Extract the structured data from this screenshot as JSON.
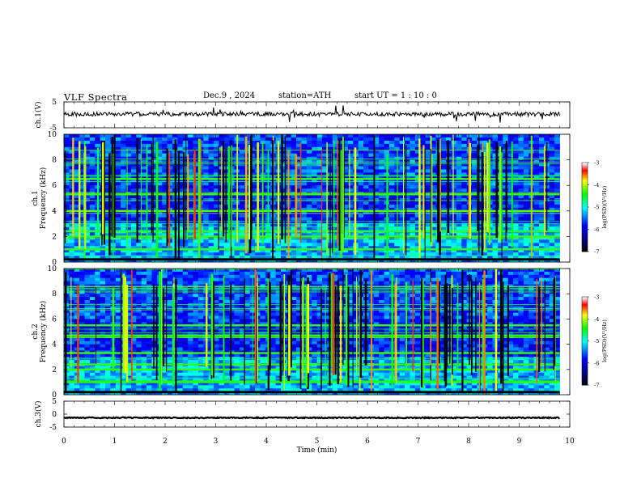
{
  "header": {
    "title": "VLF  Spectra",
    "date": "Dec.9  , 2024",
    "station": "station=ATH",
    "start_ut": "start  UT  =   1 : 10 : 0"
  },
  "chart_data": {
    "type": "heatmap",
    "x_axis": {
      "label": "Time  (min)",
      "range": [
        0,
        10
      ],
      "ticks": [
        0,
        1,
        2,
        3,
        4,
        5,
        6,
        7,
        8,
        9,
        10
      ]
    },
    "panels": [
      {
        "name": "ch.1 waveform",
        "type": "line",
        "ylabel": "ch.1(V)",
        "ylim": [
          -5,
          5
        ],
        "yticks": [
          "5",
          "-5"
        ],
        "baseline": 0.3,
        "data_extent_min": 9.8
      },
      {
        "name": "ch.1 spectrogram",
        "type": "heatmap",
        "ylabel": "ch.1\nFrequency  (kHz)",
        "ylim": [
          0,
          10
        ],
        "yticks": [
          "10",
          "8",
          "6",
          "4",
          "2",
          "0"
        ],
        "strong_bands_khz": [
          1.0,
          2.0,
          2.4,
          4.0,
          5.3,
          6.5
        ],
        "data_extent_min": 9.8
      },
      {
        "name": "ch.2 spectrogram",
        "type": "heatmap",
        "ylabel": "ch.2\nFrequency  (kHz)",
        "ylim": [
          0,
          10
        ],
        "yticks": [
          "10",
          "8",
          "6",
          "4",
          "2",
          "0"
        ],
        "strong_bands_khz": [
          1.0,
          2.0,
          2.4,
          3.3,
          4.7,
          5.5
        ],
        "data_extent_min": 9.8
      },
      {
        "name": "ch.3 waveform",
        "type": "line",
        "ylabel": "ch.3(V)",
        "ylim": [
          -5,
          5
        ],
        "yticks": [
          "5",
          "0",
          "-5"
        ],
        "baseline": -1.4,
        "data_extent_min": 9.8
      }
    ],
    "colorbar": {
      "label": "log(PSD)(V²/Hz)",
      "range": [
        -7,
        -3
      ],
      "ticks": [
        "-3",
        "-4",
        "-5",
        "-6",
        "-7"
      ]
    },
    "colormap_colors": [
      "#ffffff",
      "#ff0000",
      "#ffff00",
      "#00ff00",
      "#00ffff",
      "#0000ff",
      "#000066",
      "#000000"
    ]
  }
}
